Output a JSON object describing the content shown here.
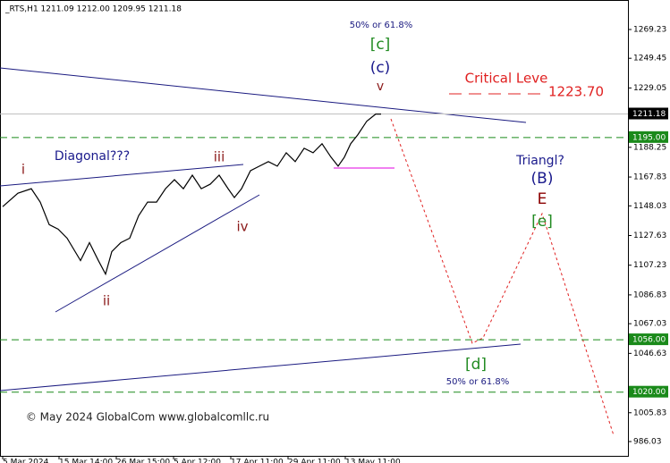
{
  "chart_data": {
    "type": "line",
    "header": "_RTS,H1  1211.09 1212.00 1209.95 1211.18",
    "x": [
      1.5,
      10,
      17.5,
      22.5,
      27.5,
      32.5,
      37.5,
      45,
      50,
      55,
      59,
      62.5,
      67.5,
      72.5,
      77.5,
      82.5,
      87.5,
      92.5,
      97.5,
      102.5,
      107.5,
      112.5,
      117.5,
      122.5,
      127.5,
      131,
      135,
      140,
      145,
      150,
      155,
      160,
      165,
      170,
      175,
      180,
      185,
      189,
      192.5,
      196,
      200,
      205,
      210,
      213
    ],
    "series": [
      {
        "name": "RTS",
        "color": "#000000",
        "values": [
          1147.5,
          1156.7,
          1159.8,
          1150.6,
          1135.1,
          1132.0,
          1125.8,
          1110.4,
          1122.7,
          1110.4,
          1101.1,
          1116.6,
          1122.7,
          1125.8,
          1141.3,
          1150.6,
          1150.6,
          1159.8,
          1166.0,
          1159.8,
          1169.1,
          1159.8,
          1162.9,
          1169.1,
          1159.8,
          1153.7,
          1159.8,
          1172.2,
          1175.3,
          1178.4,
          1175.3,
          1184.5,
          1178.4,
          1187.6,
          1184.5,
          1190.7,
          1181.5,
          1175.3,
          1181.5,
          1190.7,
          1196.9,
          1206.2,
          1211.1,
          1211.1
        ]
      }
    ],
    "xlim": [
      0,
      351
    ],
    "xticks": [
      {
        "value": 1.5,
        "label": "5 Mar 2024"
      },
      {
        "value": 33,
        "label": "15 Mar 14:00"
      },
      {
        "value": 65,
        "label": "26 Mar 15:00"
      },
      {
        "value": 97,
        "label": "5 Apr 12:00"
      },
      {
        "value": 129,
        "label": "17 Apr 11:00"
      },
      {
        "value": 161,
        "label": "29 Apr 11:00"
      },
      {
        "value": 193,
        "label": "13 May 11:00"
      }
    ],
    "ylim": [
      976.2,
      1289.5
    ],
    "yticks": [
      1269.23,
      1249.45,
      1229.05,
      1188.25,
      1167.83,
      1148.03,
      1127.63,
      1107.23,
      1086.83,
      1067.03,
      1046.63,
      1005.83,
      986.03
    ],
    "current_price": {
      "value": 1211.18,
      "label": "1211.18",
      "color": "#000000"
    },
    "levels": [
      {
        "value": 1195,
        "label": "1195.00",
        "color": "#1a8a1a"
      },
      {
        "value": 1056,
        "label": "1056.00",
        "color": "#1a8a1a"
      },
      {
        "value": 1020,
        "label": "1020.00",
        "color": "#1a8a1a"
      }
    ],
    "annotations": [
      {
        "text": "50% or 61.8%",
        "color": "#1a1a80"
      },
      {
        "text": "[c]",
        "color": "#228b22"
      },
      {
        "text": "(c)",
        "color": "#1a1a8c"
      },
      {
        "text": "v",
        "color": "#8b1a1a"
      },
      {
        "text": "Critical Leve",
        "color": "#e02020"
      },
      {
        "text": "1223.70",
        "color": "#e02020"
      },
      {
        "text": "Diagonal???",
        "color": "#1a1a8c"
      },
      {
        "text": "i",
        "color": "#8b1a1a"
      },
      {
        "text": "ii",
        "color": "#8b1a1a"
      },
      {
        "text": "iii",
        "color": "#8b1a1a"
      },
      {
        "text": "iv",
        "color": "#8b1a1a"
      },
      {
        "text": "Triangl?",
        "color": "#1a1a8c"
      },
      {
        "text": "(B)",
        "color": "#1a1a8c"
      },
      {
        "text": "E",
        "color": "#8b0000"
      },
      {
        "text": "[e]",
        "color": "#228b22"
      },
      {
        "text": "[d]",
        "color": "#228b22"
      },
      {
        "text": "50% or 61.8%",
        "color": "#1a1a80"
      },
      {
        "text": "© May 2024 GlobalCom www.globalcomllc.ru",
        "color": "#222222"
      }
    ]
  }
}
